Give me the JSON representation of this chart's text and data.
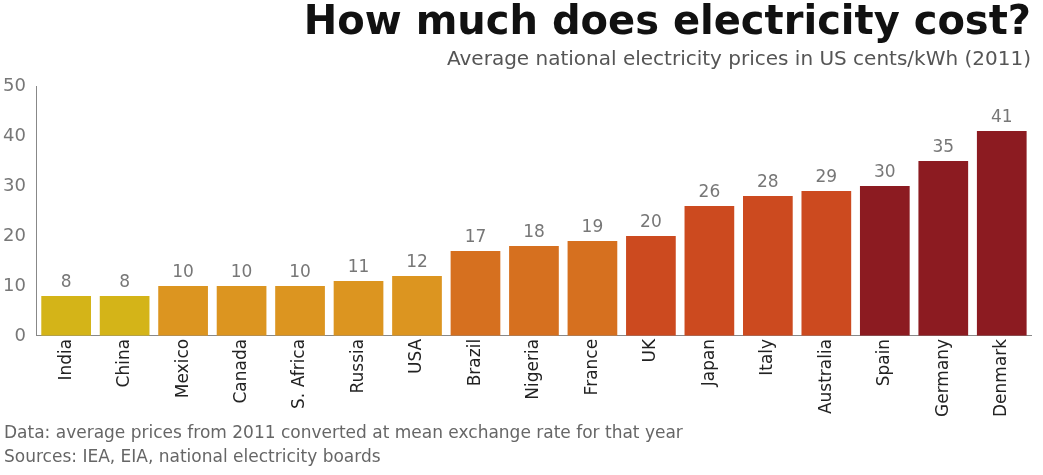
{
  "chart_data": {
    "type": "bar",
    "title": "How much does electricity cost?",
    "subtitle": "Average national electricity prices in US cents/kWh (2011)",
    "categories": [
      "India",
      "China",
      "Mexico",
      "Canada",
      "S. Africa",
      "Russia",
      "USA",
      "Brazil",
      "Nigeria",
      "France",
      "UK",
      "Japan",
      "Italy",
      "Australia",
      "Spain",
      "Germany",
      "Denmark"
    ],
    "values": [
      8,
      8,
      10,
      10,
      10,
      11,
      12,
      17,
      18,
      19,
      20,
      26,
      28,
      29,
      30,
      35,
      41
    ],
    "colors": [
      "#d4b418",
      "#d4b418",
      "#dc9520",
      "#dc9520",
      "#dc9520",
      "#dc9520",
      "#dc9520",
      "#d6701f",
      "#d6701f",
      "#d6701f",
      "#cc4a1f",
      "#cc4a1f",
      "#cc4a1f",
      "#cc4a1f",
      "#8c1b21",
      "#8c1b21",
      "#8c1b21"
    ],
    "ylim": [
      0,
      50
    ],
    "yticks": [
      0,
      10,
      20,
      30,
      40,
      50
    ],
    "grid": false,
    "legend": false,
    "data_labels": true,
    "annotations": [
      "Data:  average prices from 2011 converted at mean exchange rate for that year",
      "Sources: IEA, EIA, national electricity boards"
    ]
  }
}
